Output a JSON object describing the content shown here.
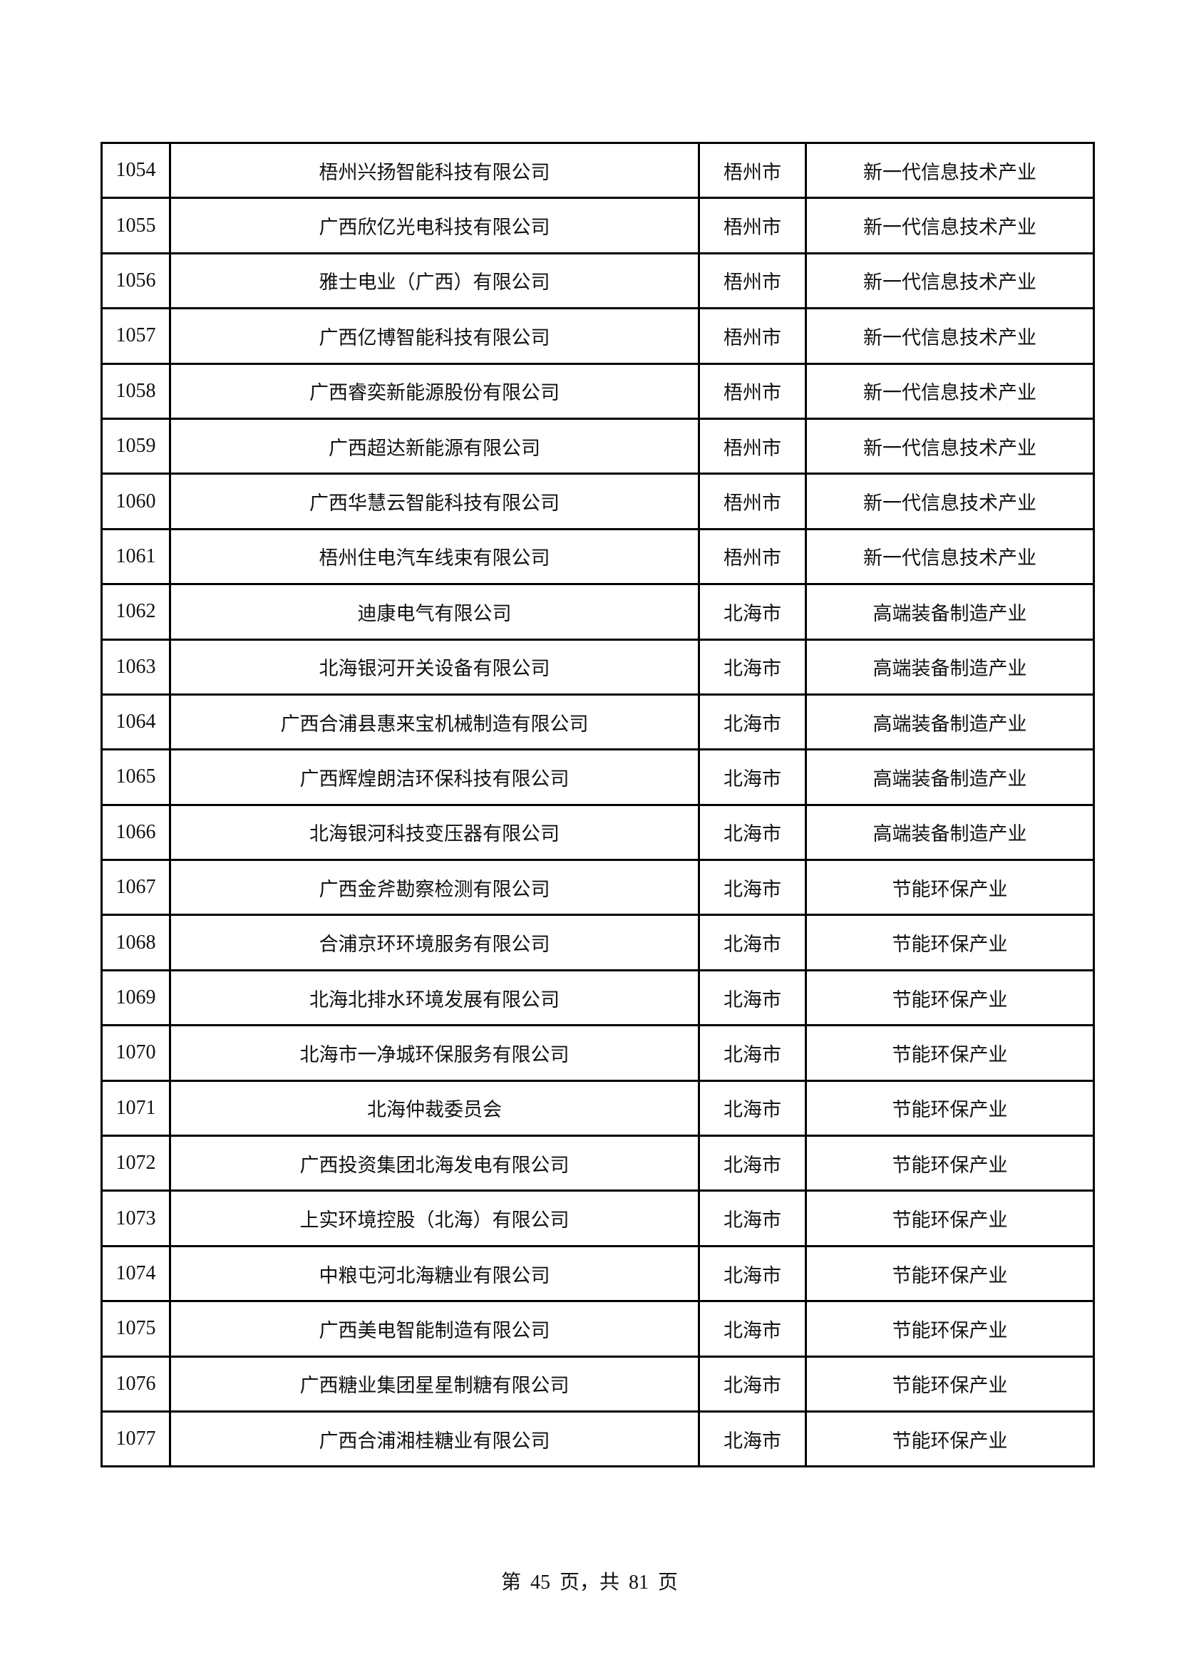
{
  "table": {
    "rows": [
      {
        "no": "1054",
        "name": "梧州兴扬智能科技有限公司",
        "city": "梧州市",
        "industry": "新一代信息技术产业"
      },
      {
        "no": "1055",
        "name": "广西欣亿光电科技有限公司",
        "city": "梧州市",
        "industry": "新一代信息技术产业"
      },
      {
        "no": "1056",
        "name": "雅士电业（广西）有限公司",
        "city": "梧州市",
        "industry": "新一代信息技术产业"
      },
      {
        "no": "1057",
        "name": "广西亿博智能科技有限公司",
        "city": "梧州市",
        "industry": "新一代信息技术产业"
      },
      {
        "no": "1058",
        "name": "广西睿奕新能源股份有限公司",
        "city": "梧州市",
        "industry": "新一代信息技术产业"
      },
      {
        "no": "1059",
        "name": "广西超达新能源有限公司",
        "city": "梧州市",
        "industry": "新一代信息技术产业"
      },
      {
        "no": "1060",
        "name": "广西华慧云智能科技有限公司",
        "city": "梧州市",
        "industry": "新一代信息技术产业"
      },
      {
        "no": "1061",
        "name": "梧州住电汽车线束有限公司",
        "city": "梧州市",
        "industry": "新一代信息技术产业"
      },
      {
        "no": "1062",
        "name": "迪康电气有限公司",
        "city": "北海市",
        "industry": "高端装备制造产业"
      },
      {
        "no": "1063",
        "name": "北海银河开关设备有限公司",
        "city": "北海市",
        "industry": "高端装备制造产业"
      },
      {
        "no": "1064",
        "name": "广西合浦县惠来宝机械制造有限公司",
        "city": "北海市",
        "industry": "高端装备制造产业"
      },
      {
        "no": "1065",
        "name": "广西辉煌朗洁环保科技有限公司",
        "city": "北海市",
        "industry": "高端装备制造产业"
      },
      {
        "no": "1066",
        "name": "北海银河科技变压器有限公司",
        "city": "北海市",
        "industry": "高端装备制造产业"
      },
      {
        "no": "1067",
        "name": "广西金斧勘察检测有限公司",
        "city": "北海市",
        "industry": "节能环保产业"
      },
      {
        "no": "1068",
        "name": "合浦京环环境服务有限公司",
        "city": "北海市",
        "industry": "节能环保产业"
      },
      {
        "no": "1069",
        "name": "北海北排水环境发展有限公司",
        "city": "北海市",
        "industry": "节能环保产业"
      },
      {
        "no": "1070",
        "name": "北海市一净城环保服务有限公司",
        "city": "北海市",
        "industry": "节能环保产业"
      },
      {
        "no": "1071",
        "name": "北海仲裁委员会",
        "city": "北海市",
        "industry": "节能环保产业"
      },
      {
        "no": "1072",
        "name": "广西投资集团北海发电有限公司",
        "city": "北海市",
        "industry": "节能环保产业"
      },
      {
        "no": "1073",
        "name": "上实环境控股（北海）有限公司",
        "city": "北海市",
        "industry": "节能环保产业"
      },
      {
        "no": "1074",
        "name": "中粮屯河北海糖业有限公司",
        "city": "北海市",
        "industry": "节能环保产业"
      },
      {
        "no": "1075",
        "name": "广西美电智能制造有限公司",
        "city": "北海市",
        "industry": "节能环保产业"
      },
      {
        "no": "1076",
        "name": "广西糖业集团星星制糖有限公司",
        "city": "北海市",
        "industry": "节能环保产业"
      },
      {
        "no": "1077",
        "name": "广西合浦湘桂糖业有限公司",
        "city": "北海市",
        "industry": "节能环保产业"
      }
    ]
  },
  "footer": {
    "text": "第 45 页，共 81 页"
  }
}
